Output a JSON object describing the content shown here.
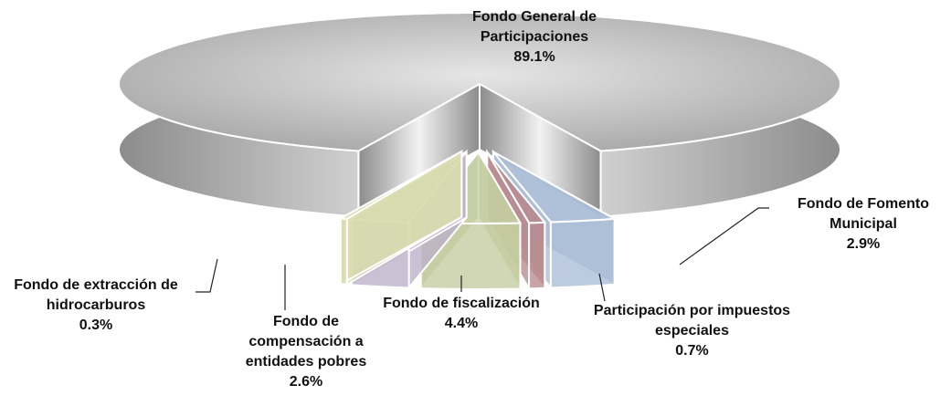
{
  "chart_data": {
    "type": "pie3d",
    "categories": [
      "Fondo General de Participaciones",
      "Fondo de Fomento Municipal",
      "Participación por impuestos especiales",
      "Fondo de fiscalización",
      "Fondo de compensación a entidades pobres",
      "Fondo de extracción de hidrocarburos"
    ],
    "values": [
      89.1,
      2.9,
      0.7,
      4.4,
      2.6,
      0.3
    ],
    "value_labels": [
      "89.1%",
      "2.9%",
      "0.7%",
      "4.4%",
      "2.6%",
      "0.3%"
    ],
    "colors": [
      "#bdbdbd",
      "#a9bcd6",
      "#b98a90",
      "#c4cc9f",
      "#bbafc9",
      "#d9dcae"
    ]
  }
}
